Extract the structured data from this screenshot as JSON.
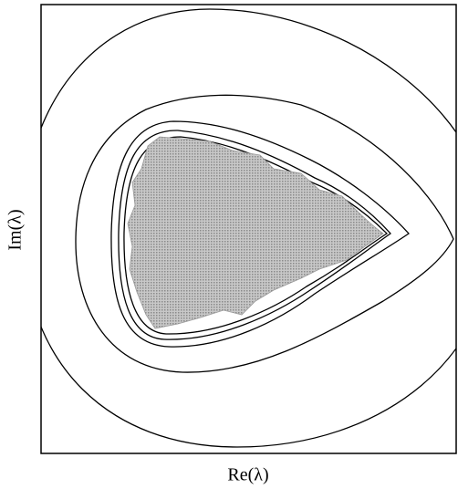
{
  "chart_data": {
    "type": "contour",
    "xlabel": "Re(λ)",
    "ylabel": "Im(λ)"
  }
}
